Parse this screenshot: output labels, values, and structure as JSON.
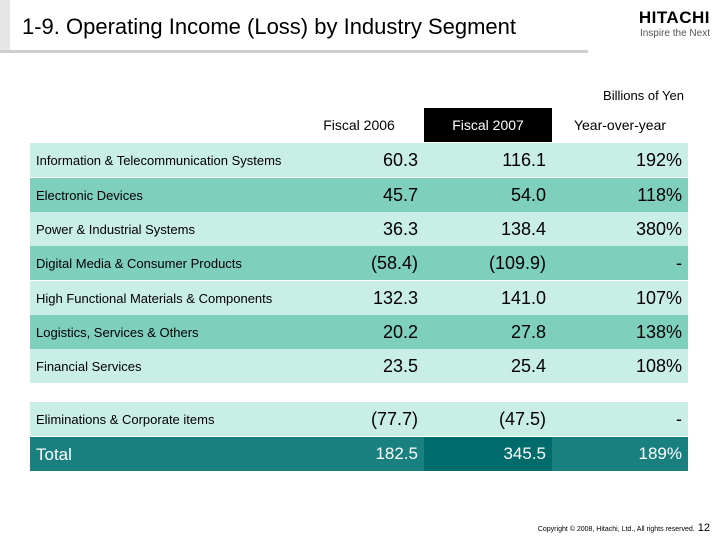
{
  "header": {
    "title": "1-9. Operating Income (Loss) by Industry Segment",
    "logo_name": "HITACHI",
    "logo_tagline": "Inspire the Next"
  },
  "units": "Billions of Yen",
  "columns": [
    "Fiscal 2006",
    "Fiscal 2007",
    "Year-over-year"
  ],
  "rows": [
    {
      "segment": "Information & Telecommunication Systems",
      "fy2006": "60.3",
      "fy2007": "116.1",
      "yoy": "192%"
    },
    {
      "segment": "Electronic Devices",
      "fy2006": "45.7",
      "fy2007": "54.0",
      "yoy": "118%"
    },
    {
      "segment": "Power & Industrial Systems",
      "fy2006": "36.3",
      "fy2007": "138.4",
      "yoy": "380%"
    },
    {
      "segment": "Digital Media & Consumer Products",
      "fy2006": "(58.4)",
      "fy2007": "(109.9)",
      "yoy": "-"
    },
    {
      "segment": "High Functional Materials & Components",
      "fy2006": "132.3",
      "fy2007": "141.0",
      "yoy": "107%"
    },
    {
      "segment": "Logistics, Services & Others",
      "fy2006": "20.2",
      "fy2007": "27.8",
      "yoy": "138%"
    },
    {
      "segment": "Financial Services",
      "fy2006": "23.5",
      "fy2007": "25.4",
      "yoy": "108%"
    }
  ],
  "eliminations": {
    "segment": "Eliminations & Corporate items",
    "fy2006": "(77.7)",
    "fy2007": "(47.5)",
    "yoy": "-"
  },
  "total": {
    "segment": "Total",
    "fy2006": "182.5",
    "fy2007": "345.5",
    "yoy": "189%"
  },
  "footer": {
    "copyright": "Copyright © 2008, Hitachi, Ltd., All rights reserved.",
    "page": "12"
  },
  "colors": {
    "teal_dark": "#7fcfbd",
    "teal_light": "#c9eee5",
    "total_bg": "#1a7f7f",
    "total_highlight": "#006b6b"
  }
}
